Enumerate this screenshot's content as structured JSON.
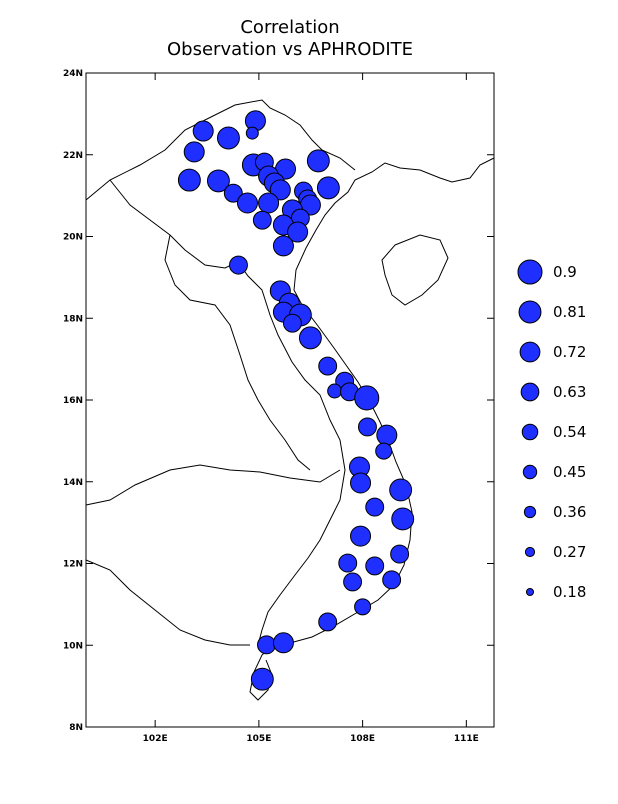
{
  "chart_data": {
    "type": "bubble",
    "title": "Correlation",
    "subtitle": "Observation vs APHRODITE",
    "xlim": [
      100,
      111.8
    ],
    "ylim": [
      8,
      24
    ],
    "xticks": [
      {
        "value": 102,
        "label": "102E"
      },
      {
        "value": 105,
        "label": "105E"
      },
      {
        "value": 108,
        "label": "108E"
      },
      {
        "value": 111,
        "label": "111E"
      }
    ],
    "yticks": [
      {
        "value": 8,
        "label": "8N"
      },
      {
        "value": 10,
        "label": "10N"
      },
      {
        "value": 12,
        "label": "12N"
      },
      {
        "value": 14,
        "label": "14N"
      },
      {
        "value": 16,
        "label": "16N"
      },
      {
        "value": 18,
        "label": "18N"
      },
      {
        "value": 20,
        "label": "20N"
      },
      {
        "value": 22,
        "label": "22N"
      },
      {
        "value": 24,
        "label": "24N"
      }
    ],
    "color": "#1f2fff",
    "legend_values": [
      0.9,
      0.81,
      0.72,
      0.63,
      0.54,
      0.45,
      0.36,
      0.27,
      0.18
    ],
    "x": [
      103.39,
      104.12,
      104.9,
      104.81,
      103.13,
      102.99,
      103.83,
      104.26,
      104.67,
      104.84,
      105.16,
      105.77,
      106.72,
      105.28,
      105.45,
      105.62,
      105.28,
      105.1,
      106.29,
      106.41,
      106.49,
      105.97,
      106.2,
      105.71,
      106.12,
      105.71,
      107.01,
      104.41,
      105.62,
      105.88,
      105.71,
      106.2,
      105.97,
      106.49,
      106.99,
      107.48,
      107.19,
      107.62,
      108.12,
      108.14,
      108.7,
      108.61,
      107.91,
      107.94,
      109.1,
      108.35,
      109.16,
      107.94,
      109.07,
      107.57,
      108.35,
      107.71,
      108.84,
      108.0,
      106.99,
      105.22,
      105.71,
      105.1
    ],
    "y": [
      22.58,
      22.41,
      22.83,
      22.53,
      22.07,
      21.38,
      21.36,
      21.06,
      20.82,
      21.75,
      21.82,
      21.65,
      21.85,
      21.48,
      21.31,
      21.14,
      20.82,
      20.4,
      21.11,
      20.92,
      20.77,
      20.65,
      20.45,
      20.28,
      20.11,
      19.77,
      21.19,
      19.3,
      18.67,
      18.37,
      18.15,
      18.08,
      17.88,
      17.52,
      16.83,
      16.46,
      16.22,
      16.2,
      16.05,
      15.34,
      15.14,
      14.75,
      14.36,
      13.97,
      13.8,
      13.38,
      13.09,
      12.67,
      12.23,
      12.01,
      11.94,
      11.55,
      11.6,
      10.94,
      10.57,
      10.01,
      10.06,
      9.17
    ],
    "values": [
      0.73,
      0.81,
      0.73,
      0.39,
      0.73,
      0.81,
      0.81,
      0.64,
      0.73,
      0.81,
      0.64,
      0.73,
      0.81,
      0.73,
      0.73,
      0.73,
      0.73,
      0.64,
      0.64,
      0.64,
      0.73,
      0.73,
      0.64,
      0.73,
      0.73,
      0.73,
      0.81,
      0.64,
      0.73,
      0.73,
      0.73,
      0.81,
      0.64,
      0.81,
      0.64,
      0.64,
      0.47,
      0.64,
      0.9,
      0.64,
      0.73,
      0.56,
      0.73,
      0.73,
      0.81,
      0.64,
      0.81,
      0.73,
      0.64,
      0.64,
      0.64,
      0.64,
      0.64,
      0.56,
      0.64,
      0.64,
      0.73,
      0.81
    ]
  }
}
